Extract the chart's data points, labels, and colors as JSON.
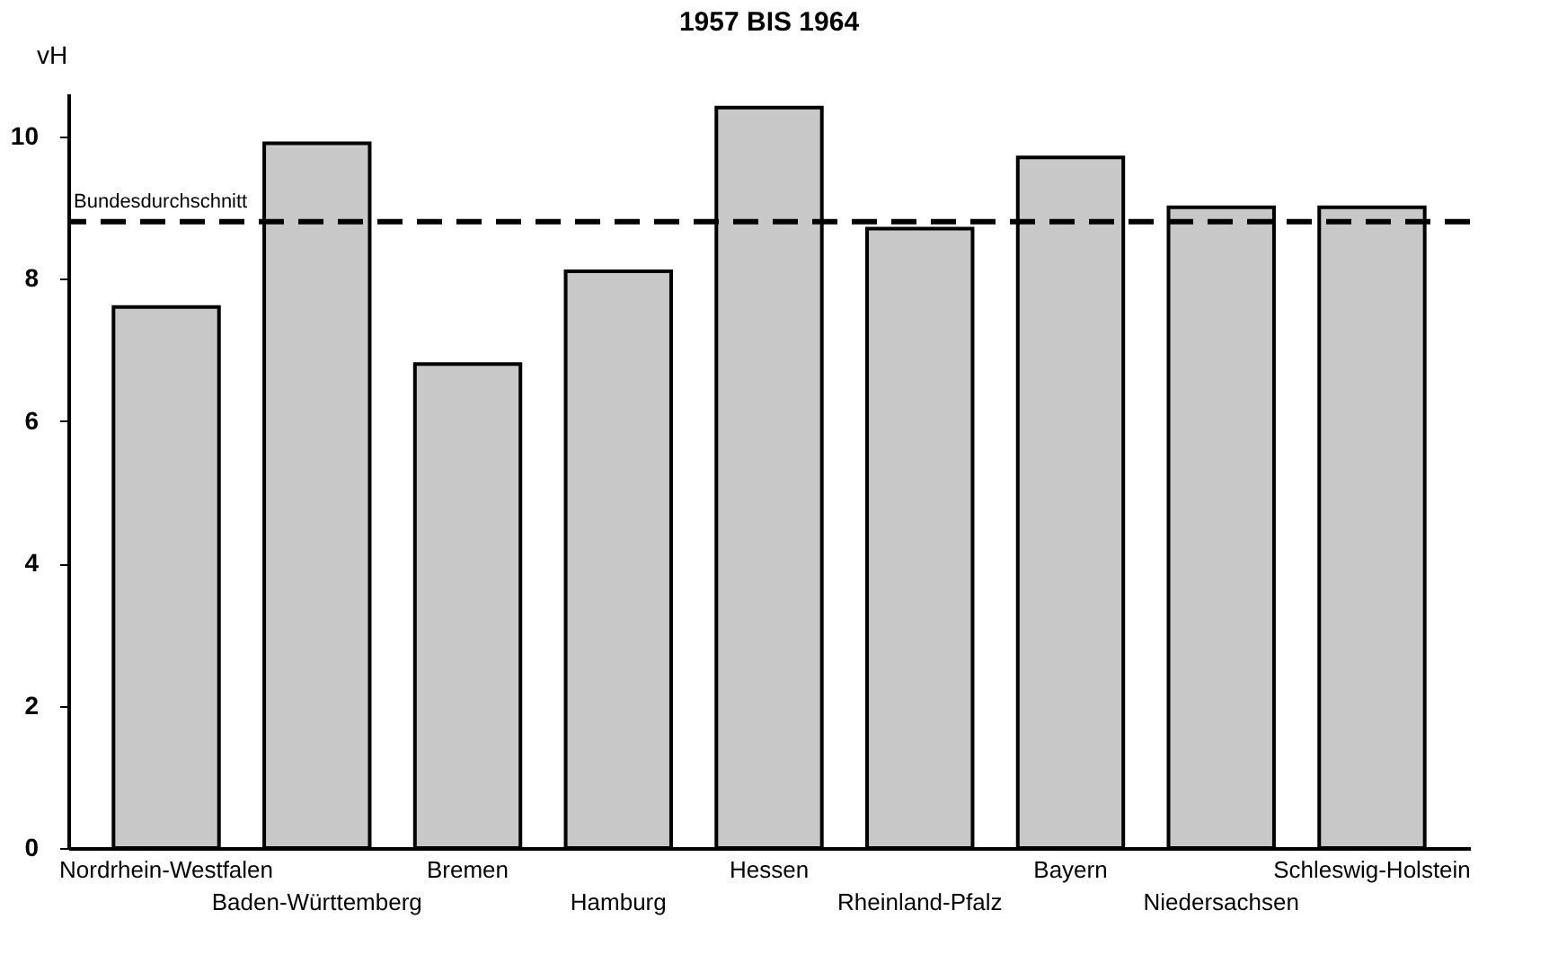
{
  "chart_data": {
    "type": "bar",
    "title": "1957 BIS 1964",
    "ylabel": "vH",
    "categories": [
      "Nordrhein-Westfalen",
      "Baden-Württemberg",
      "Bremen",
      "Hamburg",
      "Hessen",
      "Rheinland-Pfalz",
      "Bayern",
      "Niedersachsen",
      "Schleswig-Holstein"
    ],
    "values": [
      7.6,
      9.9,
      6.8,
      8.1,
      10.4,
      8.7,
      9.7,
      9.0,
      9.0
    ],
    "color": "#c8c8c8",
    "ylim": [
      0,
      10.6
    ],
    "yticks": [
      0,
      2,
      4,
      6,
      8,
      10
    ],
    "grid": false,
    "ref_lines": [
      {
        "axis": "y",
        "value": 8.8,
        "label": "Bundesdurchschnitt",
        "line_style": "dashed",
        "color": "#000000"
      }
    ]
  }
}
